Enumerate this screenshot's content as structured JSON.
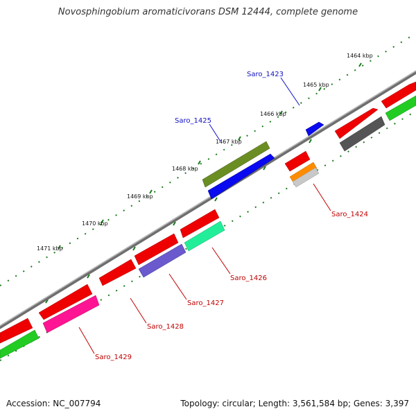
{
  "title": "Novosphingobium aromaticivorans DSM 12444, complete genome",
  "accession": "Accession: NC_007794",
  "summary": "Topology: circular; Length: 3,561,584 bp; Genes: 3,397",
  "ticks": [
    "1464 kbp",
    "1465 kbp",
    "1466 kbp",
    "1467 kbp",
    "1468 kbp",
    "1469 kbp",
    "1470 kbp",
    "1471 kbp"
  ],
  "gene_labels": [
    {
      "name": "Saro_1423",
      "color": "#1010c0"
    },
    {
      "name": "Saro_1425",
      "color": "#1010c0"
    },
    {
      "name": "Saro_1424",
      "color": "#c00000"
    },
    {
      "name": "Saro_1426",
      "color": "#c00000"
    },
    {
      "name": "Saro_1427",
      "color": "#c00000"
    },
    {
      "name": "Saro_1428",
      "color": "#c00000"
    },
    {
      "name": "Saro_1429",
      "color": "#c00000"
    }
  ],
  "colors": {
    "backbone": "#888888",
    "tick": "#1a7a1a",
    "forward_cds": "#ee0000",
    "reverse_cds": "#ee0000",
    "olive": "#6b8e23",
    "blue": "#0a0af0",
    "green": "#22cc22",
    "gray": "#555555",
    "orange": "#ff8c00",
    "silver": "#c8c8c8",
    "mint": "#22ee99",
    "slate": "#6a5acd",
    "magenta": "#ff1493"
  }
}
